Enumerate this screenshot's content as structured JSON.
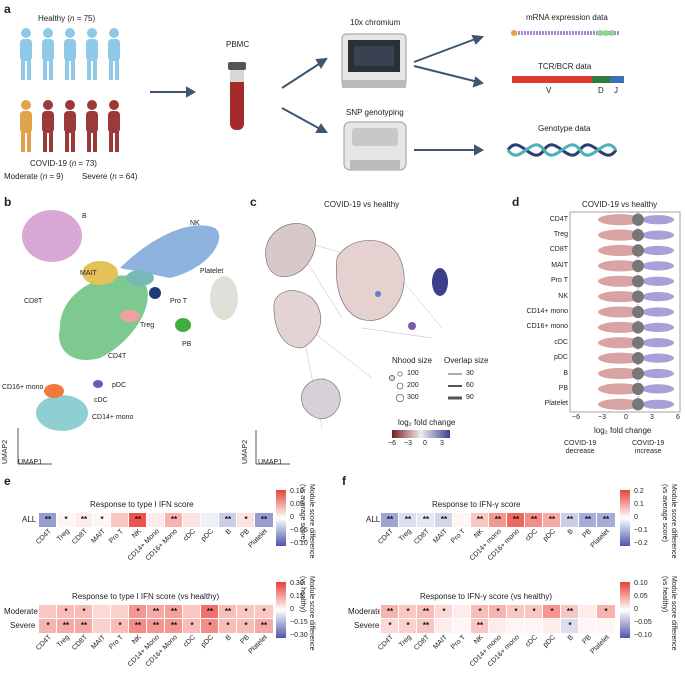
{
  "panels": {
    "a": "a",
    "b": "b",
    "c": "c",
    "d": "d",
    "e": "e",
    "f": "f"
  },
  "panel_a": {
    "healthy_label": "Healthy (",
    "healthy_n": "n",
    "healthy_count": " = 75)",
    "covid_label": "COVID-19 (",
    "covid_n": "n",
    "covid_count": " = 73)",
    "moderate": "Moderate (",
    "moderate_n": "n",
    "moderate_count": " = 9)",
    "severe": "Severe (",
    "severe_n": "n",
    "severe_count": " = 64)",
    "pbmc": "PBMC",
    "chromium": "10x chromium",
    "snp": "SNP genotyping",
    "mrna": "mRNA expression data",
    "tcr": "TCR/BCR data",
    "genotype": "Genotype data",
    "v": "V",
    "d": "D",
    "j": "J"
  },
  "panel_b": {
    "clusters": [
      "B",
      "NK",
      "MAIT",
      "Platelet",
      "CD8T",
      "Pro T",
      "Treg",
      "PB",
      "CD4T",
      "pDC",
      "cDC",
      "CD14+ mono",
      "CD16+ mono"
    ],
    "axis_x": "UMAP1",
    "axis_y": "UMAP2"
  },
  "panel_c": {
    "title": "COVID-19 vs healthy",
    "nhood_title": "Nhood size",
    "nhood_sizes": [
      "100",
      "200",
      "300"
    ],
    "overlap_title": "Overlap size",
    "overlap_sizes": [
      "30",
      "60",
      "90"
    ],
    "fc_title": "log₂ fold change",
    "fc_ticks": [
      "−6",
      "−3",
      "0",
      "3"
    ],
    "axis_x": "UMAP1",
    "axis_y": "UMAP2"
  },
  "panel_d": {
    "title": "COVID-19 vs healthy",
    "categories": [
      "CD4T",
      "Treg",
      "CD8T",
      "MAIT",
      "Pro T",
      "NK",
      "CD14+ mono",
      "CD16+ mono",
      "cDC",
      "pDC",
      "B",
      "PB",
      "Platelet"
    ],
    "xticks": [
      "−6",
      "−3",
      "0",
      "3",
      "6"
    ],
    "xlabel": "log₂ fold change",
    "decrease": "COVID-19\ndecrease",
    "increase": "COVID-19\nincrease"
  },
  "cell_types": [
    "CD4T",
    "Treg",
    "CD8T",
    "MAIT",
    "Pro T",
    "NK",
    "CD14+ Mono",
    "CD16+ Mono",
    "cDC",
    "pDC",
    "B",
    "PB",
    "Platelet"
  ],
  "cell_types_f": [
    "CD4T",
    "Treg",
    "CD8T",
    "MAIT",
    "Pro T",
    "NK",
    "CD14+ mono",
    "CD16+ mono",
    "cDC",
    "pDC",
    "B",
    "PB",
    "Platelet"
  ],
  "panel_e": {
    "title1": "Response to type I IFN score",
    "title2": "Response to type I IFN score (vs healthy)",
    "row_all": "ALL",
    "row_mod": "Moderate",
    "row_sev": "Severe",
    "cb1_ticks": [
      "0.10",
      "0.05",
      "0",
      "−0.05",
      "−0.10"
    ],
    "cb2_ticks": [
      "0.30",
      "0.15",
      "0",
      "−0.15",
      "−0.30"
    ],
    "cb1_label": "Module score difference\n(vs average score)",
    "cb2_label": "Module score difference\n(vs healthy)",
    "all_stars": [
      "**",
      "*",
      "**",
      "*",
      "",
      "**",
      "",
      "**",
      "",
      "",
      "**",
      "*",
      "**"
    ],
    "mod_stars": [
      "",
      "*",
      "*",
      "",
      "",
      "*",
      "**",
      "**",
      "",
      "**",
      "**",
      "*",
      "*"
    ],
    "sev_stars": [
      "*",
      "**",
      "**",
      "",
      "*",
      "**",
      "**",
      "**",
      "*",
      "*",
      "*",
      "*",
      "**"
    ]
  },
  "panel_f": {
    "title1": "Response to IFN-γ score",
    "title2": "Response to IFN-γ score (vs healthy)",
    "row_all": "ALL",
    "row_mod": "Moderate",
    "row_sev": "Severe",
    "cb1_ticks": [
      "0.2",
      "0.1",
      "0",
      "−0.1",
      "−0.2"
    ],
    "cb2_ticks": [
      "0.10",
      "0.05",
      "0",
      "−0.05",
      "−0.10"
    ],
    "cb1_label": "Module score difference\n(vs average score)",
    "cb2_label": "Module score difference\n(vs healthy)",
    "all_stars": [
      "**",
      "**",
      "**",
      "**",
      "",
      "**",
      "**",
      "**",
      "**",
      "**",
      "**",
      "**",
      "**"
    ],
    "mod_stars": [
      "**",
      "*",
      "**",
      "*",
      "",
      "*",
      "*",
      "*",
      "*",
      "*",
      "**",
      "",
      "*"
    ],
    "sev_stars": [
      "*",
      "*",
      "**",
      "",
      "",
      "**",
      "",
      "",
      "",
      "",
      "*",
      "",
      ""
    ]
  },
  "colors": {
    "healthy": "#8ec9e8",
    "moderate": "#e0a24a",
    "severe": "#9b3a3a",
    "arrow": "#3f5670"
  }
}
